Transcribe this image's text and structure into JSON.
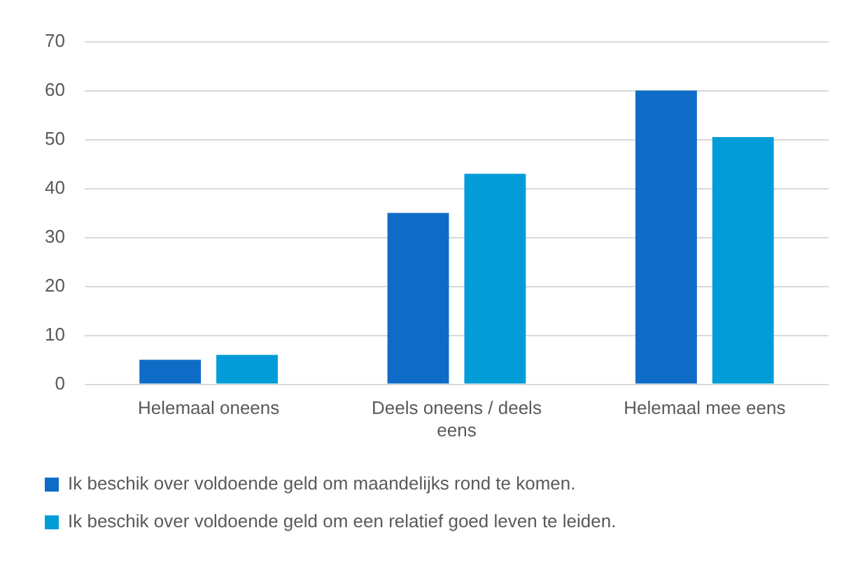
{
  "chart_data": {
    "type": "bar",
    "categories": [
      "Helemaal oneens",
      "Deels oneens / deels eens",
      "Helemaal mee eens"
    ],
    "series": [
      {
        "name": "Ik beschik over voldoende geld om maandelijks rond te komen.",
        "color": "#0f6cc6",
        "values": [
          5,
          35,
          60
        ]
      },
      {
        "name": "Ik beschik over voldoende geld om een relatief goed leven te leiden.",
        "color": "#029dd9",
        "values": [
          6,
          43,
          50.5
        ]
      }
    ],
    "ylim": [
      0,
      70
    ],
    "yticks": [
      0,
      10,
      20,
      30,
      40,
      50,
      60,
      70
    ],
    "grid": "y",
    "legend": "bottom"
  }
}
